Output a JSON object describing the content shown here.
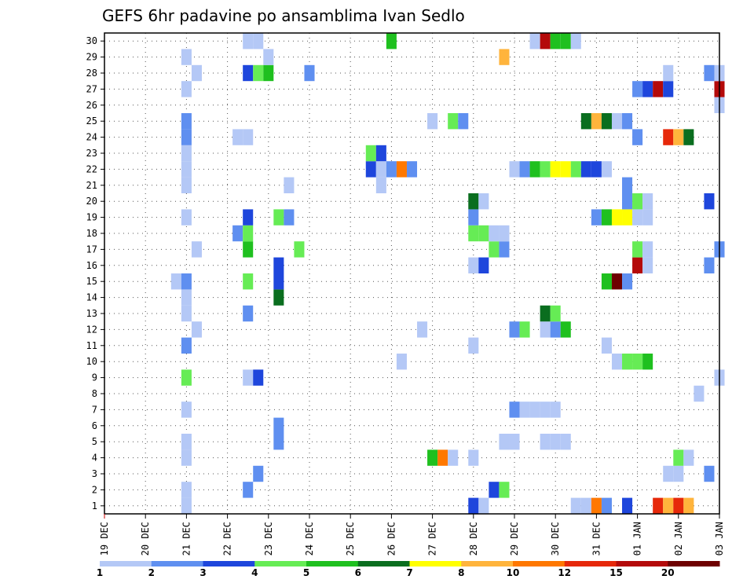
{
  "chart_data": {
    "type": "heatmap",
    "title": "GEFS 6hr padavine po ansamblima Ivan Sedlo",
    "xlabel": "",
    "ylabel": "",
    "x_tick_labels": [
      "19 DEC",
      "20 DEC",
      "21 DEC",
      "22 DEC",
      "23 DEC",
      "24 DEC",
      "25 DEC",
      "26 DEC",
      "27 DEC",
      "28 DEC",
      "29 DEC",
      "30 DEC",
      "31 DEC",
      "01 JAN",
      "02 JAN",
      "03 JAN"
    ],
    "y_tick_labels": [
      "1",
      "2",
      "3",
      "4",
      "5",
      "6",
      "7",
      "8",
      "9",
      "10",
      "11",
      "12",
      "13",
      "14",
      "15",
      "16",
      "17",
      "18",
      "19",
      "20",
      "21",
      "22",
      "23",
      "24",
      "25",
      "26",
      "27",
      "28",
      "29",
      "30"
    ],
    "x_unit": "6-hour steps from 19 DEC 00Z",
    "xlim": [
      0,
      60
    ],
    "ylim": [
      0.5,
      30.5
    ],
    "grid": true,
    "colorbar": {
      "labels": [
        "1",
        "2",
        "3",
        "4",
        "5",
        "6",
        "7",
        "8",
        "10",
        "12",
        "15",
        "20"
      ],
      "colors": [
        "#b4c8f6",
        "#5f8ff0",
        "#1e46dc",
        "#66ec55",
        "#1fc01f",
        "#0a6e1f",
        "#ffff00",
        "#ffb43c",
        "#ff7800",
        "#e6280a",
        "#b40a0a",
        "#6e0000"
      ]
    },
    "cells": [
      [
        1,
        8,
        1
      ],
      [
        1,
        36,
        3
      ],
      [
        1,
        37,
        1
      ],
      [
        1,
        46,
        1
      ],
      [
        1,
        47,
        1
      ],
      [
        1,
        48,
        10
      ],
      [
        1,
        49,
        2
      ],
      [
        1,
        51,
        3
      ],
      [
        1,
        54,
        12
      ],
      [
        1,
        55,
        8
      ],
      [
        1,
        56,
        12
      ],
      [
        1,
        57,
        8
      ],
      [
        2,
        8,
        1
      ],
      [
        2,
        14,
        2
      ],
      [
        2,
        38,
        3
      ],
      [
        2,
        39,
        4
      ],
      [
        3,
        15,
        2
      ],
      [
        3,
        55,
        1
      ],
      [
        3,
        56,
        1
      ],
      [
        3,
        59,
        2
      ],
      [
        4,
        8,
        1
      ],
      [
        4,
        32,
        5
      ],
      [
        4,
        33,
        10
      ],
      [
        4,
        34,
        1
      ],
      [
        4,
        36,
        1
      ],
      [
        4,
        56,
        4
      ],
      [
        4,
        57,
        1
      ],
      [
        5,
        8,
        1
      ],
      [
        5,
        17,
        2
      ],
      [
        5,
        39,
        1
      ],
      [
        5,
        40,
        1
      ],
      [
        5,
        43,
        1
      ],
      [
        5,
        44,
        1
      ],
      [
        5,
        45,
        1
      ],
      [
        6,
        17,
        2
      ],
      [
        7,
        8,
        1
      ],
      [
        7,
        40,
        2
      ],
      [
        7,
        41,
        1
      ],
      [
        7,
        42,
        1
      ],
      [
        7,
        43,
        1
      ],
      [
        7,
        44,
        1
      ],
      [
        8,
        58,
        1
      ],
      [
        9,
        8,
        4
      ],
      [
        9,
        14,
        1
      ],
      [
        9,
        15,
        3
      ],
      [
        9,
        60,
        1
      ],
      [
        10,
        29,
        1
      ],
      [
        10,
        50,
        1
      ],
      [
        10,
        51,
        4
      ],
      [
        10,
        52,
        4
      ],
      [
        10,
        53,
        5
      ],
      [
        11,
        8,
        2
      ],
      [
        11,
        36,
        1
      ],
      [
        11,
        49,
        1
      ],
      [
        12,
        9,
        1
      ],
      [
        12,
        31,
        1
      ],
      [
        12,
        40,
        2
      ],
      [
        12,
        41,
        4
      ],
      [
        12,
        43,
        1
      ],
      [
        12,
        44,
        2
      ],
      [
        12,
        45,
        5
      ],
      [
        13,
        8,
        1
      ],
      [
        13,
        14,
        2
      ],
      [
        13,
        43,
        6
      ],
      [
        13,
        44,
        4
      ],
      [
        14,
        8,
        1
      ],
      [
        14,
        17,
        6
      ],
      [
        15,
        7,
        1
      ],
      [
        15,
        8,
        2
      ],
      [
        15,
        14,
        4
      ],
      [
        15,
        17,
        3
      ],
      [
        15,
        49,
        5
      ],
      [
        15,
        50,
        20
      ],
      [
        15,
        51,
        2
      ],
      [
        16,
        17,
        3
      ],
      [
        16,
        36,
        1
      ],
      [
        16,
        37,
        3
      ],
      [
        16,
        52,
        15
      ],
      [
        16,
        53,
        1
      ],
      [
        16,
        59,
        2
      ],
      [
        17,
        9,
        1
      ],
      [
        17,
        14,
        5
      ],
      [
        17,
        19,
        4
      ],
      [
        17,
        38,
        4
      ],
      [
        17,
        39,
        2
      ],
      [
        17,
        52,
        4
      ],
      [
        17,
        53,
        1
      ],
      [
        17,
        60,
        2
      ],
      [
        18,
        13,
        2
      ],
      [
        18,
        14,
        4
      ],
      [
        18,
        36,
        4
      ],
      [
        18,
        37,
        4
      ],
      [
        18,
        38,
        1
      ],
      [
        18,
        39,
        1
      ],
      [
        19,
        8,
        1
      ],
      [
        19,
        14,
        3
      ],
      [
        19,
        17,
        4
      ],
      [
        19,
        18,
        2
      ],
      [
        19,
        36,
        2
      ],
      [
        19,
        48,
        2
      ],
      [
        19,
        49,
        5
      ],
      [
        19,
        50,
        7
      ],
      [
        19,
        51,
        7
      ],
      [
        19,
        52,
        1
      ],
      [
        19,
        53,
        1
      ],
      [
        20,
        36,
        6
      ],
      [
        20,
        37,
        1
      ],
      [
        20,
        51,
        2
      ],
      [
        20,
        52,
        4
      ],
      [
        20,
        53,
        1
      ],
      [
        20,
        59,
        3
      ],
      [
        21,
        8,
        1
      ],
      [
        21,
        18,
        1
      ],
      [
        21,
        27,
        1
      ],
      [
        21,
        51,
        2
      ],
      [
        22,
        8,
        1
      ],
      [
        22,
        26,
        3
      ],
      [
        22,
        27,
        1
      ],
      [
        22,
        28,
        2
      ],
      [
        22,
        29,
        10
      ],
      [
        22,
        30,
        2
      ],
      [
        22,
        40,
        1
      ],
      [
        22,
        41,
        2
      ],
      [
        22,
        42,
        5
      ],
      [
        22,
        43,
        4
      ],
      [
        22,
        44,
        7
      ],
      [
        22,
        45,
        7
      ],
      [
        22,
        46,
        4
      ],
      [
        22,
        47,
        3
      ],
      [
        22,
        48,
        3
      ],
      [
        22,
        49,
        1
      ],
      [
        23,
        8,
        1
      ],
      [
        23,
        26,
        4
      ],
      [
        23,
        27,
        3
      ],
      [
        24,
        8,
        2
      ],
      [
        24,
        13,
        1
      ],
      [
        24,
        14,
        1
      ],
      [
        24,
        52,
        2
      ],
      [
        24,
        55,
        12
      ],
      [
        24,
        56,
        8
      ],
      [
        24,
        57,
        6
      ],
      [
        25,
        8,
        2
      ],
      [
        25,
        32,
        1
      ],
      [
        25,
        34,
        4
      ],
      [
        25,
        35,
        2
      ],
      [
        25,
        47,
        6
      ],
      [
        25,
        48,
        8
      ],
      [
        25,
        49,
        6
      ],
      [
        25,
        50,
        1
      ],
      [
        25,
        51,
        2
      ],
      [
        26,
        60,
        1
      ],
      [
        27,
        8,
        1
      ],
      [
        27,
        52,
        2
      ],
      [
        27,
        53,
        3
      ],
      [
        27,
        54,
        15
      ],
      [
        27,
        55,
        3
      ],
      [
        27,
        60,
        15
      ],
      [
        28,
        9,
        1
      ],
      [
        28,
        14,
        3
      ],
      [
        28,
        15,
        4
      ],
      [
        28,
        16,
        5
      ],
      [
        28,
        20,
        2
      ],
      [
        28,
        55,
        1
      ],
      [
        28,
        59,
        2
      ],
      [
        28,
        60,
        1
      ],
      [
        29,
        8,
        1
      ],
      [
        29,
        16,
        1
      ],
      [
        29,
        39,
        8
      ],
      [
        30,
        14,
        1
      ],
      [
        30,
        15,
        1
      ],
      [
        30,
        28,
        5
      ],
      [
        30,
        42,
        1
      ],
      [
        30,
        43,
        15
      ],
      [
        30,
        44,
        5
      ],
      [
        30,
        45,
        5
      ],
      [
        30,
        46,
        1
      ]
    ]
  }
}
